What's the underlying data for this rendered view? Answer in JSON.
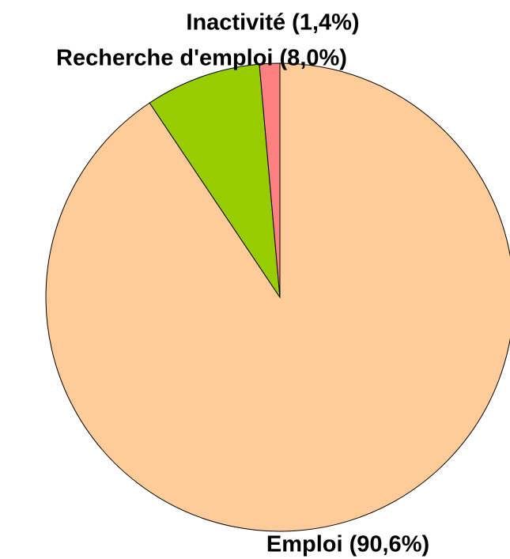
{
  "chart_data": {
    "type": "pie",
    "categories": [
      "Emploi (90,6%)",
      "Recherche d'emploi (8,0%)",
      "Inactivité (1,4%)"
    ],
    "values": [
      90.6,
      8.0,
      1.4
    ],
    "colors": [
      "#ffcc99",
      "#99cc00",
      "#ff8080"
    ]
  }
}
